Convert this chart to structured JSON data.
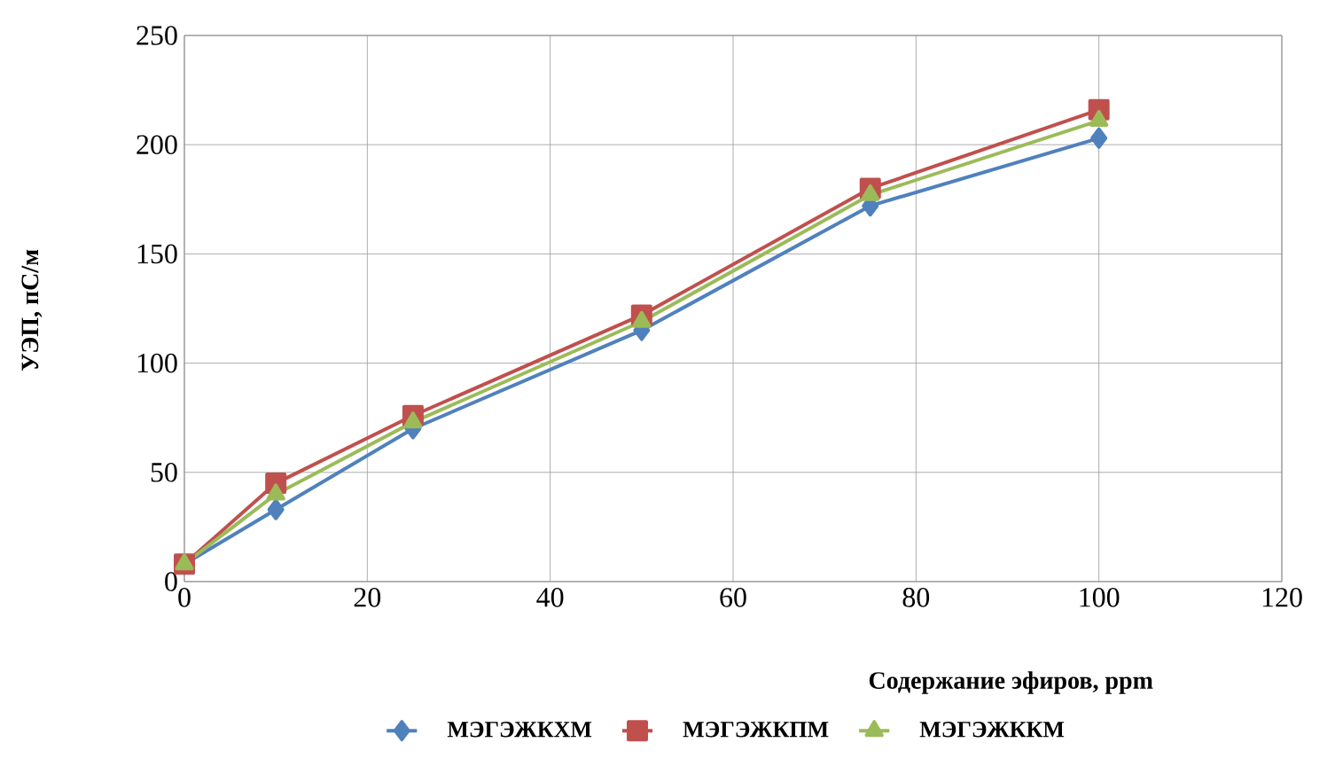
{
  "chart_data": {
    "type": "line",
    "xlabel": "Содержание эфиров, ppm",
    "ylabel": "УЭП, пС/м",
    "x": [
      0,
      10,
      25,
      50,
      75,
      100
    ],
    "series": [
      {
        "name": "МЭГЭЖКХМ",
        "color": "#4f81bd",
        "marker": "diamond",
        "values": [
          8,
          33,
          70,
          115,
          172,
          203
        ]
      },
      {
        "name": "МЭГЭЖКПМ",
        "color": "#c0504d",
        "marker": "square",
        "values": [
          8,
          45,
          76,
          122,
          180,
          216
        ]
      },
      {
        "name": "МЭГЭЖККМ",
        "color": "#9bbb59",
        "marker": "triangle",
        "values": [
          8,
          40,
          73,
          119,
          177,
          211
        ]
      }
    ],
    "xlim": [
      0,
      120
    ],
    "xticks": [
      0,
      20,
      40,
      60,
      80,
      100,
      120
    ],
    "ylim": [
      0,
      250
    ],
    "yticks": [
      0,
      50,
      100,
      150,
      200,
      250
    ],
    "grid": true,
    "legend": "bottom",
    "line_style": "solid"
  }
}
